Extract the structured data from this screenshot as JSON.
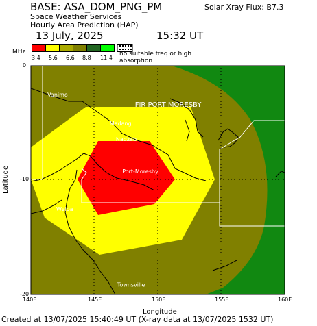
{
  "header": {
    "title": "BASE: ASA_DOM_PNG_PM",
    "flux": "Solar Xray Flux: B7.3",
    "service": "Space Weather Services",
    "hap": "Hourly Area Prediction (HAP)",
    "date": "13 July, 2025",
    "time": "15:32 UT"
  },
  "legend": {
    "unit": "MHz",
    "ticks": [
      "3.4",
      "5.6",
      "6.6",
      "8.8",
      "11.4"
    ],
    "colors": [
      "#ff0000",
      "#ffff00",
      "#aaaa00",
      "#808000",
      "#226622",
      "#00ff00"
    ],
    "no_freq": "no suitable freq or high absorption"
  },
  "map": {
    "x_ticks": [
      "140E",
      "145E",
      "150E",
      "155E",
      "160E"
    ],
    "y_ticks": [
      "0",
      "-10",
      "-20"
    ],
    "xlabel": "Longitude",
    "ylabel": "Latitude",
    "places": [
      {
        "name": "Vanimo",
        "lon": 141.3,
        "lat": -2.7
      },
      {
        "name": "FIR PORT MORESBY",
        "lon": 148.2,
        "lat": -3.6
      },
      {
        "name": "Madang",
        "lon": 146.2,
        "lat": -5.2
      },
      {
        "name": "Nadzab",
        "lon": 146.7,
        "lat": -6.6
      },
      {
        "name": "Port-Moresby",
        "lon": 147.2,
        "lat": -9.4
      },
      {
        "name": "Weipa",
        "lon": 142.0,
        "lat": -12.7
      },
      {
        "name": "Townsville",
        "lon": 146.8,
        "lat": -19.3
      }
    ],
    "zone_colors": {
      "outer": "#118811",
      "olive": "#808000",
      "yellow": "#ffff00",
      "red": "#ff0000"
    }
  },
  "footer": "Created at 13/07/2025 15:40:49 UT (X-ray data at 13/07/2025 1532 UT)"
}
